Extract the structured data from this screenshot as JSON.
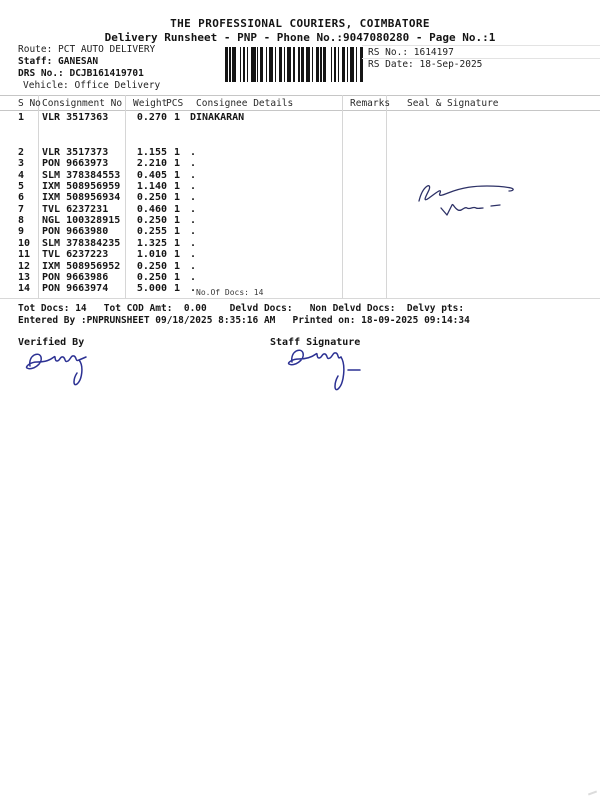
{
  "header": {
    "title": "THE PROFESSIONAL COURIERS, COIMBATORE",
    "subtitle": "Delivery Runsheet - PNP - Phone No.:9047080280 - Page No.:1"
  },
  "meta": {
    "route": "Route: PCT AUTO DELIVERY",
    "staff": "Staff: GANESAN",
    "drs_no": "DRS No.: DCJB161419701",
    "vehicle": "Vehicle: Office Delivery",
    "rs_no": "RS No.: 1614197",
    "rs_date": "RS Date: 18-Sep-2025"
  },
  "table": {
    "columns": [
      "S No",
      "Consignment No",
      "Weight",
      "PCS",
      "Consignee Details",
      "Remarks",
      "Seal & Signature"
    ],
    "rows": [
      {
        "s_no": "1",
        "consignment_no": "VLR 3517363",
        "weight": "0.270",
        "pcs": "1",
        "consignee": "DINAKARAN"
      },
      {
        "s_no": "2",
        "consignment_no": "VLR 3517373",
        "weight": "1.155",
        "pcs": "1",
        "consignee": "."
      },
      {
        "s_no": "3",
        "consignment_no": "PON 9663973",
        "weight": "2.210",
        "pcs": "1",
        "consignee": "."
      },
      {
        "s_no": "4",
        "consignment_no": "SLM 378384553",
        "weight": "0.405",
        "pcs": "1",
        "consignee": "."
      },
      {
        "s_no": "5",
        "consignment_no": "IXM 508956959",
        "weight": "1.140",
        "pcs": "1",
        "consignee": "."
      },
      {
        "s_no": "6",
        "consignment_no": "IXM 508956934",
        "weight": "0.250",
        "pcs": "1",
        "consignee": "."
      },
      {
        "s_no": "7",
        "consignment_no": "TVL 6237231",
        "weight": "0.460",
        "pcs": "1",
        "consignee": "."
      },
      {
        "s_no": "8",
        "consignment_no": "NGL 100328915",
        "weight": "0.250",
        "pcs": "1",
        "consignee": "."
      },
      {
        "s_no": "9",
        "consignment_no": "PON 9663980",
        "weight": "0.255",
        "pcs": "1",
        "consignee": "."
      },
      {
        "s_no": "10",
        "consignment_no": "SLM 378384235",
        "weight": "1.325",
        "pcs": "1",
        "consignee": "."
      },
      {
        "s_no": "11",
        "consignment_no": "TVL 6237223",
        "weight": "1.010",
        "pcs": "1",
        "consignee": "."
      },
      {
        "s_no": "12",
        "consignment_no": "IXM 508956952",
        "weight": "0.250",
        "pcs": "1",
        "consignee": "."
      },
      {
        "s_no": "13",
        "consignment_no": "PON 9663986",
        "weight": "0.250",
        "pcs": "1",
        "consignee": "."
      },
      {
        "s_no": "14",
        "consignment_no": "PON 9663974",
        "weight": "5.000",
        "pcs": "1",
        "consignee": "."
      }
    ],
    "no_of_docs": "No.Of Docs: 14"
  },
  "footer": {
    "totals_line": "Tot Docs: 14   Tot COD Amt:  0.00    Delvd Docs:   Non Delvd Docs:  Delvy pts:",
    "entered_line": "Entered By :PNPRUNSHEET 09/18/2025 8:35:16 AM   Printed on: 18-09-2025 09:14:34",
    "verified_by_label": "Verified By",
    "staff_signature_label": "Staff Signature"
  },
  "colors": {
    "ink": "#161616",
    "signature_blue": "#2c3193",
    "signature_navy": "#2d3166",
    "grid_line": "#c6c6c6"
  }
}
